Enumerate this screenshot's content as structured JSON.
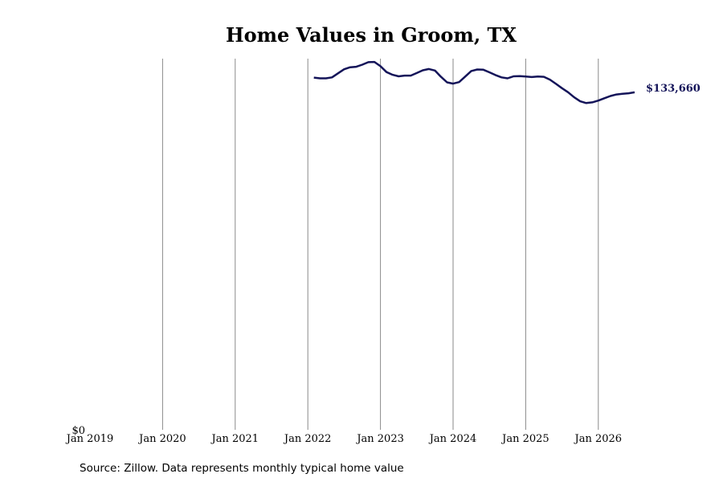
{
  "chart_data": {
    "type": "line",
    "title": "Home Values in Groom, TX",
    "source": "Source: Zillow. Data represents monthly typical home value",
    "xlabel": "",
    "ylabel": "",
    "x_ticks": [
      "Jan 2019",
      "Jan 2020",
      "Jan 2021",
      "Jan 2022",
      "Jan 2023",
      "Jan 2024",
      "Jan 2025",
      "Jan 2026"
    ],
    "y_tick_label": "$0",
    "ylim": [
      0,
      147000
    ],
    "grid": "vertical",
    "line_color": "#141459",
    "end_label": "$133,660",
    "series": [
      {
        "x": [
          "2022-02",
          "2022-03",
          "2022-04",
          "2022-05",
          "2022-06",
          "2022-07",
          "2022-08",
          "2022-09",
          "2022-10",
          "2022-11",
          "2022-12",
          "2023-01",
          "2023-02",
          "2023-03",
          "2023-04",
          "2023-05",
          "2023-06",
          "2023-07",
          "2023-08",
          "2023-09",
          "2023-10",
          "2023-11",
          "2023-12",
          "2024-01",
          "2024-02",
          "2024-03",
          "2024-04",
          "2024-05",
          "2024-06",
          "2024-07",
          "2024-08",
          "2024-09",
          "2024-10",
          "2024-11",
          "2024-12",
          "2025-01",
          "2025-02",
          "2025-03",
          "2025-04",
          "2025-05",
          "2025-06",
          "2025-07",
          "2025-08",
          "2025-09",
          "2025-10",
          "2025-11",
          "2025-12",
          "2026-01",
          "2026-02",
          "2026-03",
          "2026-04",
          "2026-05",
          "2026-06",
          "2026-07"
        ],
        "values": [
          139500,
          139200,
          139200,
          139600,
          141200,
          142800,
          143600,
          143800,
          144600,
          145600,
          145700,
          144000,
          141700,
          140600,
          140000,
          140300,
          140300,
          141300,
          142400,
          142900,
          142300,
          139800,
          137600,
          137100,
          137700,
          139900,
          142100,
          142700,
          142600,
          141600,
          140500,
          139600,
          139200,
          140000,
          140100,
          139900,
          139700,
          139900,
          139800,
          138700,
          137000,
          135300,
          133700,
          131700,
          130100,
          129400,
          129700,
          130400,
          131300,
          132200,
          132800,
          133100,
          133300,
          133660
        ]
      }
    ]
  }
}
